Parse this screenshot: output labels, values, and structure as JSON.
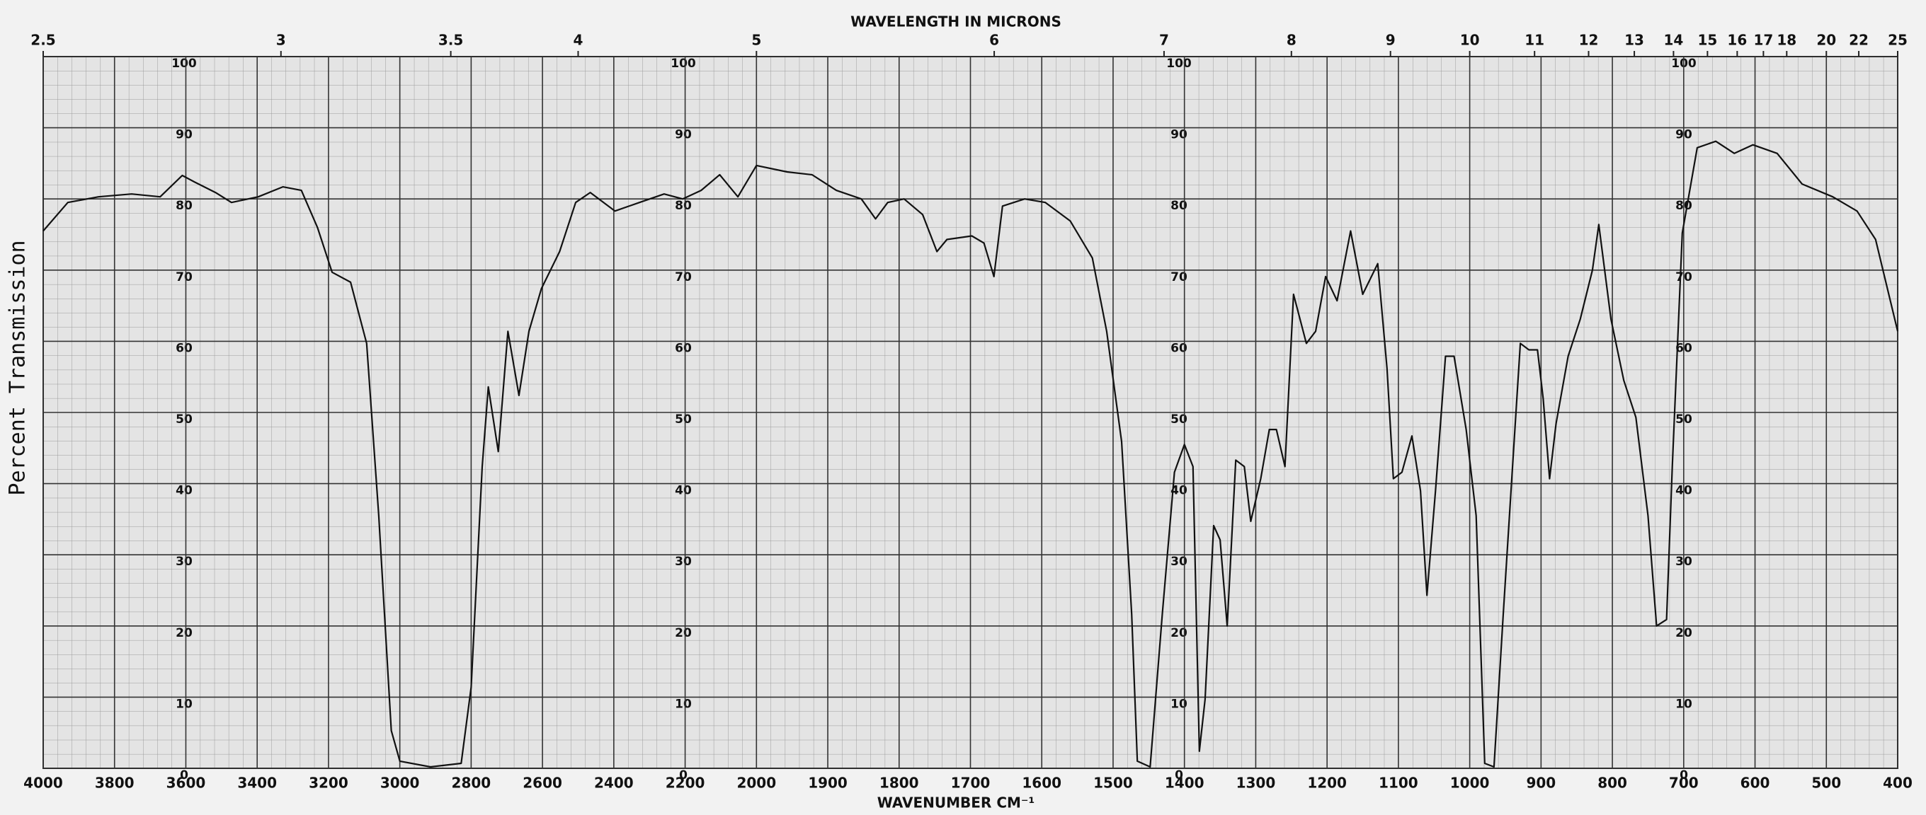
{
  "chart_data": {
    "type": "line",
    "title": "WAVELENGTH IN MICRONS",
    "x_label": "WAVENUMBER CM⁻¹",
    "y_label": "Percent Transmission",
    "xlim": [
      4000,
      400
    ],
    "xticks": [
      4000,
      3800,
      3600,
      3400,
      3200,
      3000,
      2800,
      2600,
      2400,
      2200,
      2000,
      1900,
      1800,
      1700,
      1600,
      1500,
      1400,
      1300,
      1200,
      1100,
      1000,
      900,
      800,
      700,
      600,
      500,
      400
    ],
    "x2lim": [
      2.5,
      25
    ],
    "x2ticks": [
      2.5,
      3,
      3.5,
      4,
      5,
      6,
      7,
      8,
      9,
      10,
      11,
      12,
      13,
      14,
      15,
      16,
      17,
      18,
      20,
      22,
      25
    ],
    "ylim": [
      0,
      100
    ],
    "yticks": [
      0,
      10,
      20,
      30,
      40,
      50,
      60,
      70,
      80,
      90,
      100
    ],
    "grid": true,
    "x": [
      4000,
      3931,
      3845,
      3752,
      3672,
      3610,
      3576,
      3517,
      3472,
      3397,
      3328,
      3276,
      3231,
      3190,
      3138,
      3093,
      3059,
      3024,
      3000,
      2914,
      2828,
      2800,
      2769,
      2752,
      2724,
      2697,
      2666,
      2638,
      2603,
      2552,
      2507,
      2466,
      2397,
      2328,
      2259,
      2207,
      2155,
      2103,
      2052,
      2000,
      1957,
      1922,
      1888,
      1853,
      1833,
      1816,
      1793,
      1767,
      1747,
      1733,
      1698,
      1681,
      1667,
      1655,
      1624,
      1595,
      1560,
      1529,
      1509,
      1488,
      1474,
      1466,
      1448,
      1431,
      1414,
      1400,
      1388,
      1379,
      1371,
      1359,
      1350,
      1340,
      1328,
      1316,
      1307,
      1293,
      1281,
      1271,
      1259,
      1247,
      1229,
      1216,
      1202,
      1186,
      1167,
      1150,
      1129,
      1116,
      1107,
      1095,
      1081,
      1069,
      1060,
      1048,
      1034,
      1022,
      1005,
      991,
      979,
      966,
      953,
      940,
      929,
      917,
      905,
      897,
      888,
      879,
      862,
      845,
      828,
      819,
      802,
      784,
      767,
      750,
      738,
      724,
      716,
      702,
      681,
      655,
      629,
      603,
      569,
      534,
      491,
      457,
      431,
      400
    ],
    "series": [
      {
        "color": "#111111",
        "values": [
          75.5,
          79.5,
          80.3,
          80.7,
          80.3,
          83.3,
          82.4,
          80.9,
          79.5,
          80.3,
          81.7,
          81.2,
          76,
          69.7,
          68.3,
          59.7,
          35.5,
          5.3,
          1,
          0.2,
          0.7,
          11.4,
          42.4,
          53.6,
          44.5,
          61.4,
          52.4,
          61.4,
          67.4,
          72.6,
          79.5,
          80.9,
          78.3,
          79.5,
          80.7,
          80,
          81.2,
          83.4,
          80.3,
          84.7,
          83.8,
          83.4,
          81.2,
          80,
          77.2,
          79.5,
          80,
          77.8,
          72.6,
          74.3,
          74.8,
          73.8,
          69.1,
          79,
          80,
          79.5,
          76.9,
          71.7,
          61.4,
          45.9,
          21.7,
          1,
          0.2,
          21.7,
          41.6,
          45.5,
          42.4,
          2.4,
          9.7,
          34.1,
          32.1,
          20,
          43.3,
          42.4,
          34.7,
          40.7,
          47.6,
          47.6,
          42.4,
          66.6,
          59.7,
          61.4,
          69.1,
          65.7,
          75.5,
          66.6,
          70.9,
          56.2,
          40.7,
          41.6,
          46.7,
          39,
          24.3,
          39,
          57.9,
          57.9,
          47.6,
          35.5,
          0.7,
          0.2,
          21.7,
          42.4,
          59.7,
          58.8,
          58.8,
          51.9,
          40.7,
          48.4,
          57.9,
          63.1,
          70,
          76.4,
          63.1,
          54.5,
          49.3,
          35.5,
          20,
          20.9,
          42.4,
          75.2,
          87.2,
          88.1,
          86.4,
          87.6,
          86.4,
          82.1,
          80.3,
          78.3,
          74.3,
          61.4
        ]
      }
    ]
  }
}
